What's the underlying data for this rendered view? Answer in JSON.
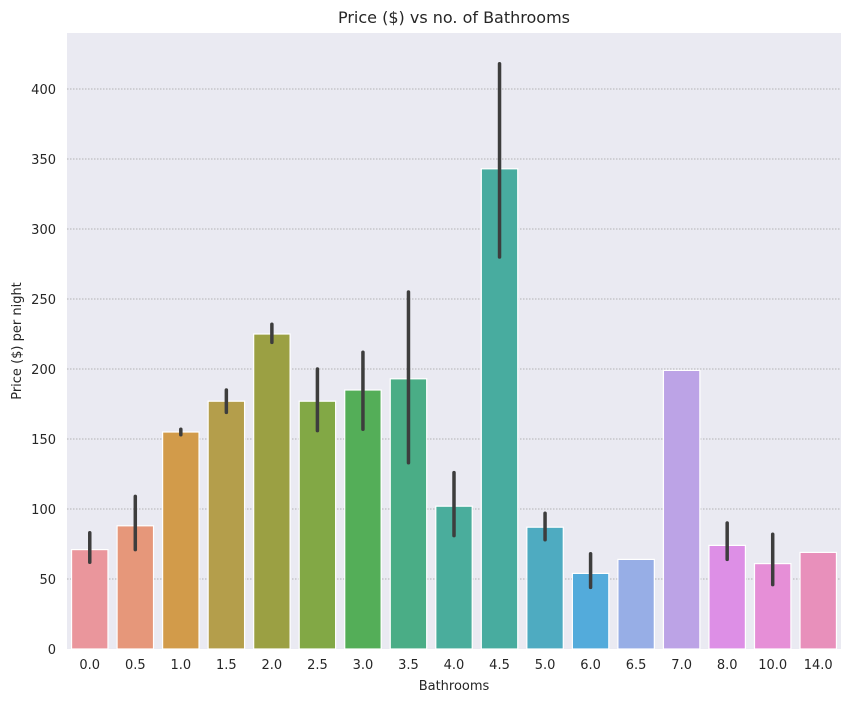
{
  "chart_data": {
    "type": "bar",
    "title": "Price ($) vs no. of Bathrooms",
    "xlabel": "Bathrooms",
    "ylabel": "Price ($) per night",
    "ylim": [
      0,
      440
    ],
    "yticks": [
      0,
      50,
      100,
      150,
      200,
      250,
      300,
      350,
      400
    ],
    "grid": true,
    "categories": [
      "0.0",
      "0.5",
      "1.0",
      "1.5",
      "2.0",
      "2.5",
      "3.0",
      "3.5",
      "4.0",
      "4.5",
      "5.0",
      "6.0",
      "6.5",
      "7.0",
      "8.0",
      "10.0",
      "14.0"
    ],
    "values": [
      71,
      88,
      155,
      177,
      225,
      177,
      185,
      193,
      102,
      343,
      87,
      54,
      64,
      199,
      74,
      61,
      69
    ],
    "error_low": [
      62,
      71,
      153,
      169,
      219,
      156,
      157,
      133,
      81,
      280,
      78,
      44,
      null,
      null,
      64,
      46,
      null
    ],
    "error_high": [
      83,
      109,
      157,
      185,
      232,
      200,
      212,
      255,
      126,
      418,
      97,
      68,
      null,
      null,
      90,
      82,
      null
    ],
    "colors": [
      "#ea969c",
      "#e6977a",
      "#d29b4a",
      "#b49e4b",
      "#9ba043",
      "#82a845",
      "#54ae58",
      "#4aad86",
      "#4aad9c",
      "#48ac9f",
      "#4eabc1",
      "#53abdb",
      "#97aee6",
      "#bca3e6",
      "#dd8fe6",
      "#e68fd7",
      "#e890bb"
    ],
    "background": "#eaeaf2",
    "error_color": "#3d3d3d"
  }
}
